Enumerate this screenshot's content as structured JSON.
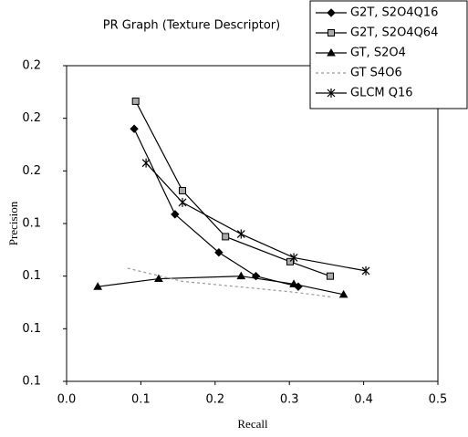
{
  "chart_data": {
    "type": "line",
    "title": "PR Graph (Texture Descriptor)",
    "x_label": "Recall",
    "y_label": "Precision",
    "xlim": [
      0,
      0.5
    ],
    "xticks": [
      {
        "value": 0,
        "label": "0.0"
      },
      0.1,
      0.2,
      0.3,
      0.4,
      0.5
    ],
    "ylim": [
      0.08,
      0.2
    ],
    "yticks": [
      {
        "value": 0.08,
        "label": "0.1"
      },
      0.1,
      {
        "value": 0.12,
        "label": "0.1"
      },
      {
        "value": 0.14,
        "label": "0.1"
      },
      {
        "value": 0.16,
        "label": "0.2"
      },
      {
        "value": 0.18,
        "label": "0.2"
      },
      0.2
    ],
    "grid": false,
    "legend": "top-right",
    "series": [
      {
        "name": "G2T, S2O4Q16",
        "color": "#000000",
        "marker": "diamond",
        "dash": false,
        "x": [
          0.091,
          0.146,
          0.205,
          0.255,
          0.312
        ],
        "values": [
          0.176,
          0.1435,
          0.129,
          0.12,
          0.116
        ]
      },
      {
        "name": "G2T, S2O4Q64",
        "color": "#000000",
        "marker": "square",
        "dash": false,
        "x": [
          0.093,
          0.156,
          0.214,
          0.301,
          0.355
        ],
        "values": [
          0.1865,
          0.1525,
          0.135,
          0.1255,
          0.12
        ]
      },
      {
        "name": "GT, S2O4",
        "color": "#000000",
        "marker": "triangle",
        "dash": false,
        "x": [
          0.042,
          0.124,
          0.235,
          0.306,
          0.373
        ],
        "values": [
          0.116,
          0.119,
          0.12,
          0.117,
          0.113
        ]
      },
      {
        "name": "GT S4O6",
        "color": "#999999",
        "marker": "none",
        "dash": true,
        "x": [
          0.082,
          0.156,
          0.23,
          0.303,
          0.359
        ],
        "values": [
          0.123,
          0.118,
          0.116,
          0.114,
          0.112
        ]
      },
      {
        "name": "GLCM Q16",
        "color": "#000000",
        "marker": "star",
        "dash": false,
        "x": [
          0.107,
          0.156,
          0.235,
          0.306,
          0.403
        ],
        "values": [
          0.163,
          0.148,
          0.136,
          0.127,
          0.122
        ]
      }
    ]
  }
}
